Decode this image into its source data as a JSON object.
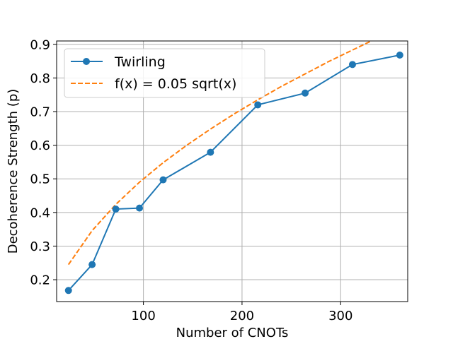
{
  "chart_data": {
    "type": "line",
    "xlabel": "Number of CNOTs",
    "ylabel": "Decoherence Strength (p)",
    "xlim": [
      12,
      368
    ],
    "ylim": [
      0.135,
      0.91
    ],
    "xticks": [
      100,
      200,
      300
    ],
    "xtick_labels": [
      "100",
      "200",
      "300"
    ],
    "yticks": [
      0.2,
      0.3,
      0.4,
      0.5,
      0.6,
      0.7,
      0.8,
      0.9
    ],
    "ytick_labels": [
      "0.2",
      "0.3",
      "0.4",
      "0.5",
      "0.6",
      "0.7",
      "0.8",
      "0.9"
    ],
    "grid": true,
    "legend_position": "top-left",
    "series": [
      {
        "name": "Twirling",
        "style": "solid-line-with-markers",
        "color": "#1f77b4",
        "x": [
          24,
          48,
          72,
          96,
          120,
          168,
          216,
          264,
          312,
          360
        ],
        "y": [
          0.168,
          0.245,
          0.41,
          0.413,
          0.497,
          0.579,
          0.72,
          0.755,
          0.84,
          0.868
        ]
      },
      {
        "name": "f(x) = 0.05 sqrt(x)",
        "style": "dashed-line",
        "color": "#ff7f0e",
        "x": [
          24,
          48,
          72,
          96,
          120,
          144,
          168,
          192,
          216,
          240,
          264,
          288,
          312,
          336,
          360
        ],
        "y": [
          0.245,
          0.346,
          0.424,
          0.49,
          0.548,
          0.6,
          0.648,
          0.693,
          0.735,
          0.775,
          0.812,
          0.849,
          0.883,
          0.917,
          0.949
        ]
      }
    ]
  }
}
